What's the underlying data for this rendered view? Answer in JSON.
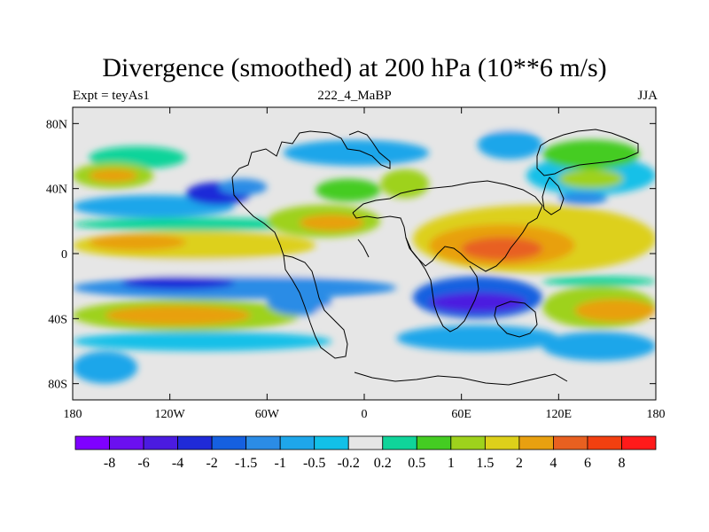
{
  "chart_data": {
    "type": "heatmap",
    "title": "Divergence (smoothed) at 200 hPa (10**6 m/s)",
    "left_label": "Expt = teyAs1",
    "center_label": "222_4_MaBP",
    "right_label": "JJA",
    "x_axis": {
      "ticks": [
        -180,
        -120,
        -60,
        0,
        60,
        120,
        180
      ],
      "labels": [
        "180",
        "120W",
        "60W",
        "0",
        "60E",
        "120E",
        "180"
      ],
      "range": [
        -180,
        180
      ]
    },
    "y_axis": {
      "ticks": [
        80,
        40,
        0,
        -40,
        -80
      ],
      "labels": [
        "80N",
        "40N",
        "0",
        "40S",
        "80S"
      ],
      "range": [
        -90,
        90
      ]
    },
    "levels": [
      "-8",
      "-6",
      "-4",
      "-2",
      "-1.5",
      "-1",
      "-0.5",
      "-0.2",
      "0.2",
      "0.5",
      "1",
      "1.5",
      "2",
      "4",
      "6",
      "8"
    ],
    "colors": [
      "#7f00ff",
      "#6b10f0",
      "#4b1be0",
      "#1f2ad8",
      "#1560e0",
      "#2b8ce6",
      "#1ea6ea",
      "#12c0e8",
      "#e6e6e6",
      "#10d49a",
      "#44cc22",
      "#9ed21c",
      "#ddd01a",
      "#e8a010",
      "#e86020",
      "#f24010",
      "#ff1a1a"
    ],
    "regions": [
      {
        "lon": [
          -180,
          180
        ],
        "lat": [
          75,
          90
        ],
        "level": 8
      },
      {
        "lon": [
          -170,
          -110
        ],
        "lat": [
          52,
          66
        ],
        "level": 9
      },
      {
        "lon": [
          -180,
          -130
        ],
        "lat": [
          40,
          56
        ],
        "level": 11
      },
      {
        "lon": [
          -170,
          -140
        ],
        "lat": [
          44,
          52
        ],
        "level": 13
      },
      {
        "lon": [
          -180,
          -80
        ],
        "lat": [
          22,
          36
        ],
        "level": 6
      },
      {
        "lon": [
          -110,
          -70
        ],
        "lat": [
          30,
          44
        ],
        "level": 3
      },
      {
        "lon": [
          -90,
          -60
        ],
        "lat": [
          36,
          46
        ],
        "level": 5
      },
      {
        "lon": [
          -180,
          -30
        ],
        "lat": [
          14,
          22
        ],
        "level": 9
      },
      {
        "lon": [
          -180,
          -30
        ],
        "lat": [
          -4,
          14
        ],
        "level": 12
      },
      {
        "lon": [
          -170,
          -110
        ],
        "lat": [
          2,
          12
        ],
        "level": 13
      },
      {
        "lon": [
          -60,
          10
        ],
        "lat": [
          10,
          30
        ],
        "level": 11
      },
      {
        "lon": [
          -40,
          0
        ],
        "lat": [
          14,
          24
        ],
        "level": 13
      },
      {
        "lon": [
          -180,
          40
        ],
        "lat": [
          -14,
          -4
        ],
        "level": 8
      },
      {
        "lon": [
          -180,
          20
        ],
        "lat": [
          -28,
          -14
        ],
        "level": 5
      },
      {
        "lon": [
          -150,
          -80
        ],
        "lat": [
          -22,
          -14
        ],
        "level": 3
      },
      {
        "lon": [
          -180,
          -40
        ],
        "lat": [
          -48,
          -28
        ],
        "level": 11
      },
      {
        "lon": [
          -160,
          -70
        ],
        "lat": [
          -44,
          -32
        ],
        "level": 13
      },
      {
        "lon": [
          -180,
          -20
        ],
        "lat": [
          -60,
          -48
        ],
        "level": 7
      },
      {
        "lon": [
          -180,
          -140
        ],
        "lat": [
          -80,
          -60
        ],
        "level": 6
      },
      {
        "lon": [
          -60,
          -20
        ],
        "lat": [
          -38,
          -22
        ],
        "level": 5
      },
      {
        "lon": [
          -30,
          30
        ],
        "lat": [
          -44,
          -30
        ],
        "level": 8
      },
      {
        "lon": [
          -50,
          40
        ],
        "lat": [
          54,
          70
        ],
        "level": 6
      },
      {
        "lon": [
          -30,
          10
        ],
        "lat": [
          32,
          46
        ],
        "level": 10
      },
      {
        "lon": [
          10,
          40
        ],
        "lat": [
          34,
          52
        ],
        "level": 11
      },
      {
        "lon": [
          30,
          180
        ],
        "lat": [
          -12,
          30
        ],
        "level": 12
      },
      {
        "lon": [
          40,
          130
        ],
        "lat": [
          -8,
          18
        ],
        "level": 13
      },
      {
        "lon": [
          60,
          110
        ],
        "lat": [
          -4,
          10
        ],
        "level": 14
      },
      {
        "lon": [
          30,
          110
        ],
        "lat": [
          -40,
          -14
        ],
        "level": 4
      },
      {
        "lon": [
          40,
          100
        ],
        "lat": [
          -36,
          -24
        ],
        "level": 2
      },
      {
        "lon": [
          110,
          180
        ],
        "lat": [
          -20,
          -14
        ],
        "level": 9
      },
      {
        "lon": [
          110,
          180
        ],
        "lat": [
          -46,
          -20
        ],
        "level": 11
      },
      {
        "lon": [
          130,
          180
        ],
        "lat": [
          -42,
          -28
        ],
        "level": 13
      },
      {
        "lon": [
          20,
          120
        ],
        "lat": [
          -60,
          -44
        ],
        "level": 6
      },
      {
        "lon": [
          110,
          180
        ],
        "lat": [
          -66,
          -48
        ],
        "level": 6
      },
      {
        "lon": [
          100,
          180
        ],
        "lat": [
          36,
          60
        ],
        "level": 7
      },
      {
        "lon": [
          110,
          170
        ],
        "lat": [
          52,
          70
        ],
        "level": 10
      },
      {
        "lon": [
          120,
          160
        ],
        "lat": [
          40,
          52
        ],
        "level": 11
      },
      {
        "lon": [
          70,
          110
        ],
        "lat": [
          58,
          76
        ],
        "level": 6
      },
      {
        "lon": [
          120,
          150
        ],
        "lat": [
          30,
          38
        ],
        "level": 5
      }
    ]
  }
}
